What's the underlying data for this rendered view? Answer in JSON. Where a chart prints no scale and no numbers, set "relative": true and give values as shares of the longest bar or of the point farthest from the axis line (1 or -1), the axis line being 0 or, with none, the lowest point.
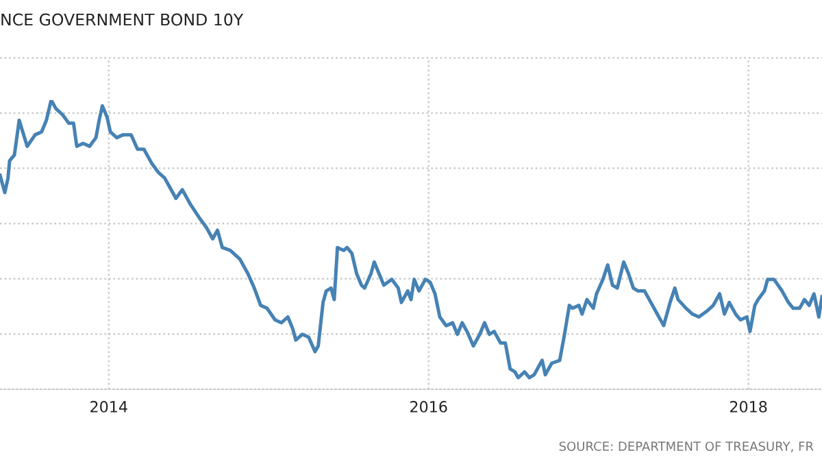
{
  "chart_data": {
    "type": "line",
    "title": "NCE GOVERNMENT BOND 10Y",
    "relative": true,
    "xlim": [
      2013.32,
      2018.46
    ],
    "xticks": [
      2014,
      2016,
      2018
    ],
    "tick_labels": "x",
    "grid": true,
    "annotations": [
      "SOURCE: DEPARTMENT OF TREASURY, FR"
    ],
    "x": [
      2013.32,
      2013.35,
      2013.37,
      2013.38,
      2013.41,
      2013.44,
      2013.49,
      2013.54,
      2013.58,
      2013.61,
      2013.64,
      2013.67,
      2013.71,
      2013.75,
      2013.78,
      2013.8,
      2013.84,
      2013.88,
      2013.92,
      2013.94,
      2013.96,
      2013.99,
      2014.01,
      2014.05,
      2014.09,
      2014.14,
      2014.18,
      2014.22,
      2014.27,
      2014.31,
      2014.35,
      2014.39,
      2014.42,
      2014.46,
      2014.51,
      2014.57,
      2014.61,
      2014.65,
      2014.68,
      2014.71,
      2014.76,
      2014.82,
      2014.87,
      2014.91,
      2014.95,
      2014.99,
      2015.04,
      2015.08,
      2015.12,
      2015.15,
      2015.17,
      2015.21,
      2015.25,
      2015.29,
      2015.31,
      2015.34,
      2015.36,
      2015.39,
      2015.41,
      2015.43,
      2015.47,
      2015.49,
      2015.52,
      2015.55,
      2015.58,
      2015.6,
      2015.64,
      2015.66,
      2015.69,
      2015.72,
      2015.77,
      2015.81,
      2015.83,
      2015.87,
      2015.89,
      2015.91,
      2015.94,
      2015.98,
      2016.01,
      2016.04,
      2016.07,
      2016.11,
      2016.15,
      2016.18,
      2016.21,
      2016.24,
      2016.28,
      2016.32,
      2016.35,
      2016.38,
      2016.41,
      2016.45,
      2016.48,
      2016.51,
      2016.54,
      2016.56,
      2016.6,
      2016.63,
      2016.66,
      2016.71,
      2016.73,
      2016.77,
      2016.82,
      2016.85,
      2016.88,
      2016.9,
      2016.94,
      2016.96,
      2016.99,
      2017.03,
      2017.05,
      2017.09,
      2017.12,
      2017.15,
      2017.18,
      2017.22,
      2017.25,
      2017.28,
      2017.31,
      2017.35,
      2017.39,
      2017.44,
      2017.47,
      2017.51,
      2017.54,
      2017.56,
      2017.61,
      2017.65,
      2017.69,
      2017.74,
      2017.78,
      2017.82,
      2017.85,
      2017.88,
      2017.92,
      2017.95,
      2017.99,
      2018.01,
      2018.04,
      2018.06,
      2018.1,
      2018.12,
      2018.16,
      2018.21,
      2018.25,
      2018.28,
      2018.32,
      2018.35,
      2018.38,
      2018.41,
      2018.44,
      2018.46
    ],
    "series": [
      {
        "color": "#4682b4",
        "values": [
          0.74,
          0.68,
          0.73,
          0.79,
          0.81,
          0.93,
          0.84,
          0.88,
          0.89,
          0.93,
          1.0,
          0.97,
          0.95,
          0.92,
          0.92,
          0.84,
          0.85,
          0.84,
          0.87,
          0.93,
          0.98,
          0.94,
          0.89,
          0.87,
          0.88,
          0.88,
          0.83,
          0.83,
          0.78,
          0.75,
          0.73,
          0.69,
          0.66,
          0.69,
          0.64,
          0.59,
          0.56,
          0.52,
          0.55,
          0.49,
          0.48,
          0.45,
          0.4,
          0.35,
          0.29,
          0.28,
          0.24,
          0.23,
          0.25,
          0.21,
          0.17,
          0.19,
          0.18,
          0.13,
          0.15,
          0.3,
          0.34,
          0.35,
          0.31,
          0.49,
          0.48,
          0.49,
          0.47,
          0.4,
          0.36,
          0.35,
          0.4,
          0.44,
          0.4,
          0.36,
          0.38,
          0.35,
          0.3,
          0.34,
          0.31,
          0.38,
          0.34,
          0.38,
          0.37,
          0.33,
          0.25,
          0.22,
          0.23,
          0.19,
          0.23,
          0.2,
          0.15,
          0.19,
          0.23,
          0.19,
          0.2,
          0.16,
          0.16,
          0.07,
          0.06,
          0.04,
          0.06,
          0.04,
          0.05,
          0.1,
          0.05,
          0.09,
          0.1,
          0.19,
          0.29,
          0.28,
          0.29,
          0.26,
          0.31,
          0.28,
          0.33,
          0.38,
          0.43,
          0.36,
          0.35,
          0.44,
          0.4,
          0.35,
          0.34,
          0.34,
          0.3,
          0.25,
          0.22,
          0.3,
          0.35,
          0.31,
          0.28,
          0.26,
          0.25,
          0.27,
          0.29,
          0.33,
          0.26,
          0.3,
          0.26,
          0.24,
          0.25,
          0.2,
          0.29,
          0.31,
          0.34,
          0.38,
          0.38,
          0.34,
          0.3,
          0.28,
          0.28,
          0.31,
          0.29,
          0.33,
          0.25,
          0.32
        ]
      }
    ]
  }
}
